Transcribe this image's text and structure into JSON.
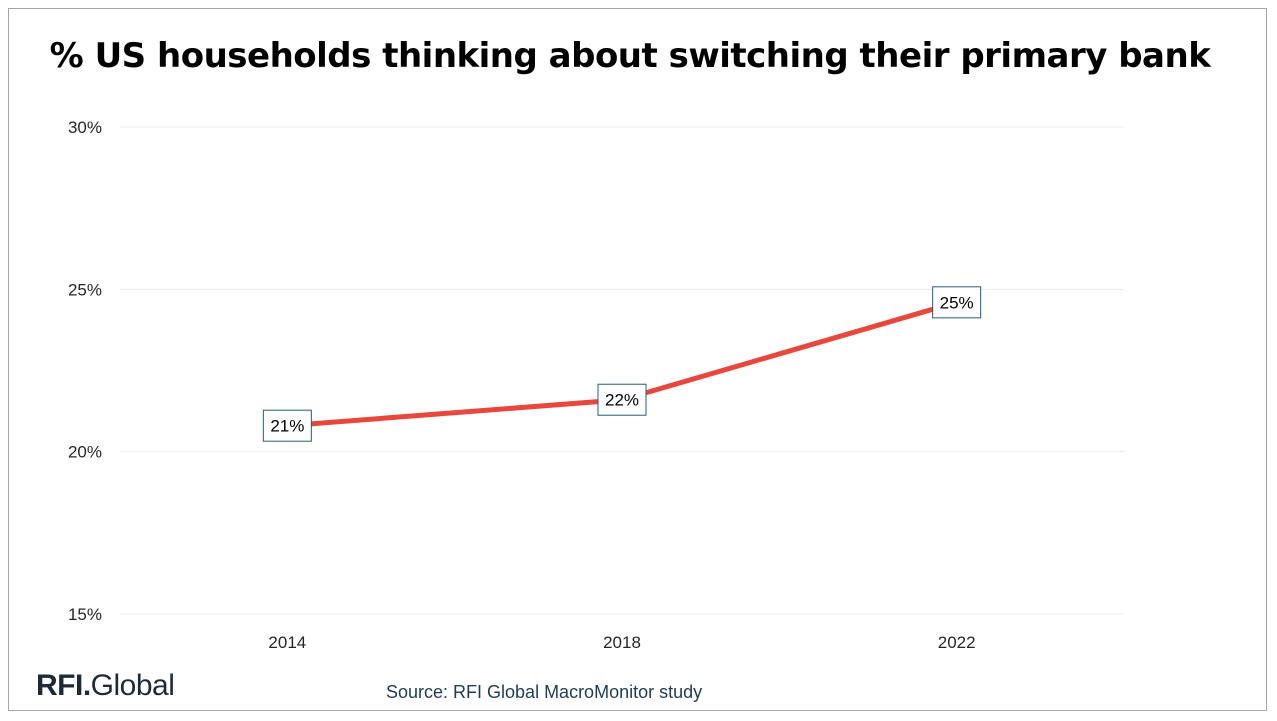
{
  "chart_data": {
    "type": "line",
    "title": "% US households thinking about switching their primary bank",
    "categories": [
      "2014",
      "2018",
      "2022"
    ],
    "series": [
      {
        "values": [
          20.8,
          21.6,
          24.6
        ],
        "data_labels": [
          "21%",
          "22%",
          "25%"
        ],
        "color": "#e8473c"
      }
    ],
    "ylim": [
      15,
      30
    ],
    "yticks": [
      15,
      20,
      25,
      30
    ],
    "ytick_labels": [
      "15%",
      "20%",
      "25%",
      "30%"
    ],
    "grid": true,
    "label_box_color": "#1f5f7a"
  },
  "footer": {
    "logo_text": "RFI.Global",
    "logo_rfi": "RFI",
    "logo_dot": ".",
    "logo_global": "Global",
    "source": "Source: RFI Global MacroMonitor study"
  }
}
